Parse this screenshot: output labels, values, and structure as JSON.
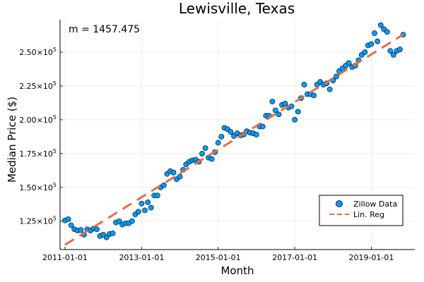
{
  "chart_data": {
    "type": "scatter",
    "title": "Lewisville, Texas",
    "xlabel": "Month",
    "ylabel": "Median Price ($)",
    "annotation": "m = 1457.475",
    "legend_position": "bottom-right",
    "grid": true,
    "xlim": [
      "2010-11-15",
      "2020-02-20"
    ],
    "ylim": [
      104000,
      274000
    ],
    "x_ticks": [
      "2011-01-01",
      "2013-01-01",
      "2015-01-01",
      "2017-01-01",
      "2019-01-01"
    ],
    "y_ticks": [
      {
        "value": 125000,
        "mantissa": "1.25",
        "exp": "5"
      },
      {
        "value": 150000,
        "mantissa": "1.50",
        "exp": "5"
      },
      {
        "value": 175000,
        "mantissa": "1.75",
        "exp": "5"
      },
      {
        "value": 200000,
        "mantissa": "2.00",
        "exp": "5"
      },
      {
        "value": 225000,
        "mantissa": "2.25",
        "exp": "5"
      },
      {
        "value": 250000,
        "mantissa": "2.50",
        "exp": "5"
      }
    ],
    "series": [
      {
        "name": "Zillow Data",
        "kind": "scatter",
        "color": "#009AFA",
        "x_start": "2011-01-01",
        "x_step": "1 month",
        "values": [
          125500,
          126500,
          122000,
          119000,
          118000,
          118500,
          115000,
          119000,
          118000,
          119500,
          119000,
          114000,
          115000,
          113000,
          115500,
          116000,
          124000,
          125000,
          122500,
          123500,
          123500,
          125000,
          130000,
          132000,
          138000,
          133000,
          139000,
          135000,
          144000,
          144000,
          150000,
          151500,
          160000,
          162000,
          161000,
          156000,
          158000,
          163000,
          167000,
          169000,
          170000,
          170500,
          169000,
          175000,
          179000,
          172000,
          171000,
          176000,
          183000,
          187500,
          194000,
          193000,
          191000,
          188000,
          190000,
          188500,
          189000,
          191500,
          190500,
          190000,
          189000,
          195000,
          195000,
          203000,
          203000,
          213500,
          207000,
          204000,
          211000,
          212000,
          209000,
          210000,
          200000,
          206000,
          216000,
          226000,
          219000,
          219000,
          218000,
          226000,
          228000,
          226000,
          227000,
          222500,
          229000,
          232000,
          236000,
          238000,
          240000,
          242000,
          239000,
          240000,
          244000,
          248000,
          250000,
          255000,
          256000,
          264000,
          258000,
          270000,
          267000,
          265000,
          251000,
          248000,
          251000,
          252000,
          263000
        ]
      },
      {
        "name": "Lin. Reg",
        "kind": "line",
        "color": "#E26F46",
        "dash": true,
        "x": [
          "2011-01-01",
          "2019-11-01"
        ],
        "y": [
          107500,
          263000
        ]
      }
    ]
  }
}
